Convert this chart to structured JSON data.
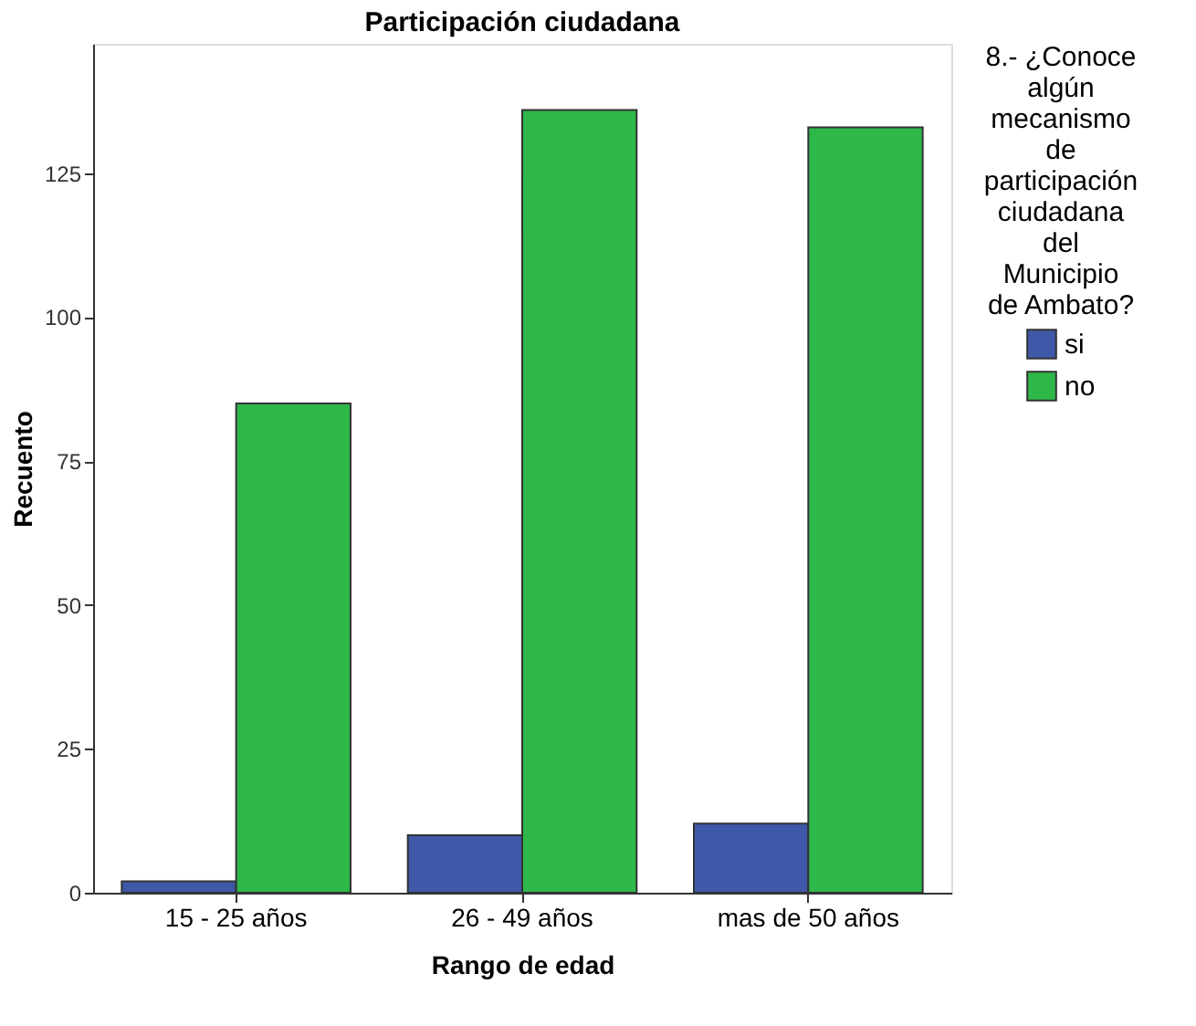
{
  "chart_data": {
    "type": "bar",
    "title": "Participación ciudadana",
    "xlabel": "Rango de edad",
    "ylabel": "Recuento",
    "legend_title": "8.- ¿Conoce algún mecanismo de participación ciudadana del Municipio de Ambato?",
    "categories": [
      "15 - 25 años",
      "26 - 49 años",
      "mas de 50 años"
    ],
    "series": [
      {
        "name": "si",
        "color": "#3f59a8",
        "values": [
          2,
          10,
          12
        ]
      },
      {
        "name": "no",
        "color": "#2eb84a",
        "values": [
          85,
          136,
          133
        ]
      }
    ],
    "ylim": [
      0,
      147.5
    ],
    "yticks": [
      0,
      25,
      50,
      75,
      100,
      125
    ],
    "grid": false,
    "legend": "top right"
  }
}
